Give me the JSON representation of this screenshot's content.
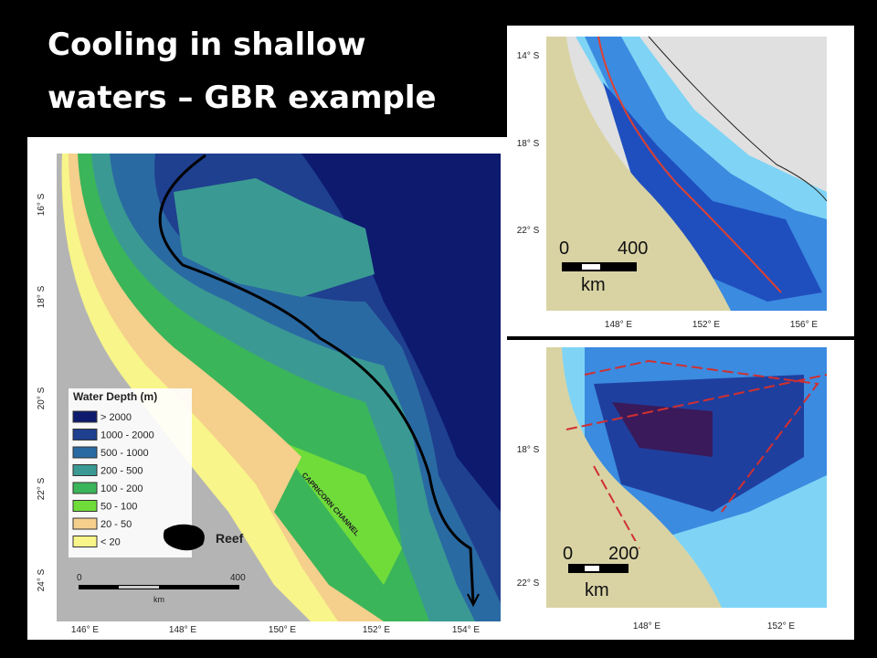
{
  "title": {
    "lines": [
      "Cooling in shallow",
      "waters – GBR example"
    ]
  },
  "main_map": {
    "lat_labels": [
      "16° S",
      "18° S",
      "20° S",
      "22° S",
      "24° S"
    ],
    "lon_labels": [
      "146° E",
      "148° E",
      "150° E",
      "152° E",
      "154° E"
    ],
    "legend": {
      "title": "Water Depth (m)",
      "items": [
        {
          "label": "> 2000",
          "color": "#0d1a6e"
        },
        {
          "label": "1000 - 2000",
          "color": "#1f3f8f"
        },
        {
          "label": "500 - 1000",
          "color": "#2a6aa3"
        },
        {
          "label": "200 - 500",
          "color": "#3a9a93"
        },
        {
          "label": "100 - 200",
          "color": "#3bb559"
        },
        {
          "label": "50 - 100",
          "color": "#6fdc3a"
        },
        {
          "label": "20 - 50",
          "color": "#f5cf8c"
        },
        {
          "label": "< 20",
          "color": "#f8f58a"
        }
      ]
    },
    "reef_label": "Reef",
    "channel_label": "CAPRICORN CHANNEL",
    "scale": {
      "start": "0",
      "end": "400",
      "unit": "km"
    }
  },
  "top_map": {
    "lat_labels": [
      "14° S",
      "18° S",
      "22° S"
    ],
    "lon_labels": [
      "148° E",
      "152° E",
      "156° E"
    ],
    "scale": {
      "start": "0",
      "end": "400",
      "unit": "km"
    }
  },
  "bottom_map": {
    "lat_labels": [
      "18° S",
      "22° S"
    ],
    "lon_labels": [
      "148° E",
      "152° E"
    ],
    "scale": {
      "start": "0",
      "end": "200",
      "unit": "km"
    }
  }
}
